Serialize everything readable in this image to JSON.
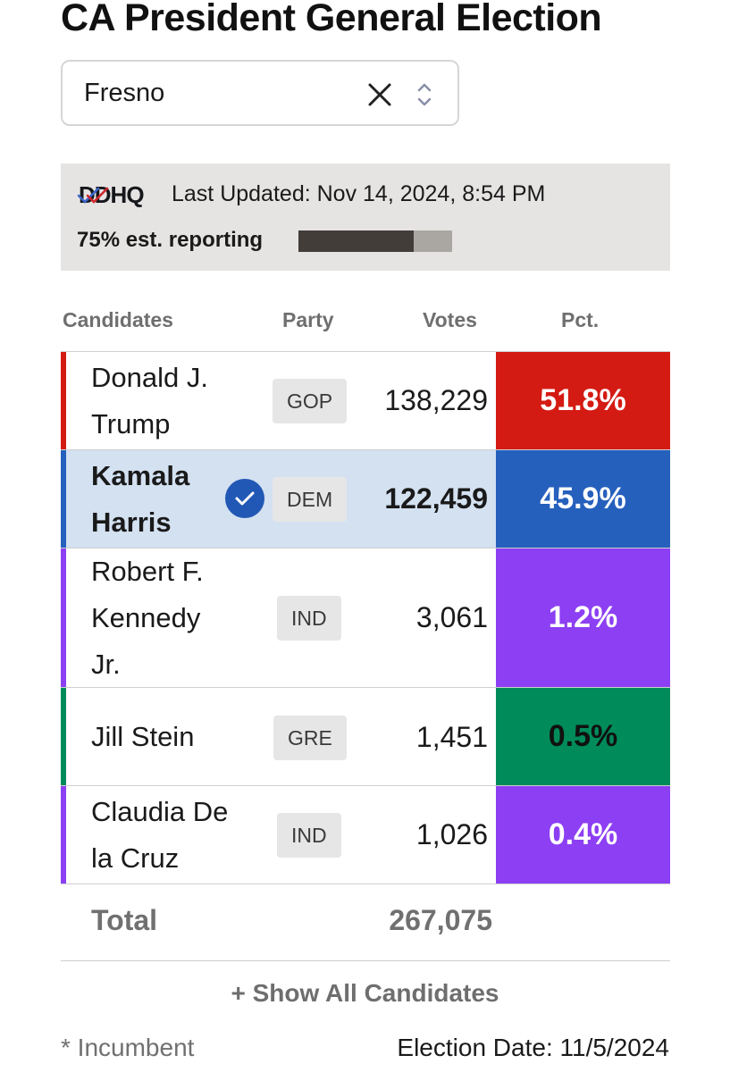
{
  "title": "CA President General Election",
  "county_select": {
    "value": "Fresno",
    "clear_icon": "close-icon",
    "stepper_icon": "chevron-up-down-icon"
  },
  "ddhq": {
    "logo": "DDHQ",
    "last_updated": "Last Updated: Nov 14, 2024, 8:54 PM",
    "reporting_label": "75% est. reporting",
    "reporting_fraction": 0.75
  },
  "table": {
    "headers": {
      "candidates": "Candidates",
      "party": "Party",
      "votes": "Votes",
      "pct": "Pct."
    },
    "rows": [
      {
        "name_line1": "Donald J.",
        "name_line2": "Trump",
        "name_line3": "",
        "party": "GOP",
        "votes": "138,229",
        "pct": "51.8%",
        "color": "#d41b13",
        "winner": false
      },
      {
        "name_line1": "Kamala",
        "name_line2": "Harris",
        "name_line3": "",
        "party": "DEM",
        "votes": "122,459",
        "pct": "45.9%",
        "color": "#2660bd",
        "winner": true,
        "row_bg": "#d3e1f1"
      },
      {
        "name_line1": "Robert F.",
        "name_line2": "Kennedy",
        "name_line3": "Jr.",
        "party": "IND",
        "votes": "3,061",
        "pct": "1.2%",
        "color": "#8c3ff3",
        "winner": false
      },
      {
        "name_line1": "Jill Stein",
        "name_line2": "",
        "name_line3": "",
        "party": "GRE",
        "votes": "1,451",
        "pct": "0.5%",
        "color": "#008b5b",
        "winner": false,
        "pct_text_color": "#111111"
      },
      {
        "name_line1": "Claudia De",
        "name_line2": "la Cruz",
        "name_line3": "",
        "party": "IND",
        "votes": "1,026",
        "pct": "0.4%",
        "color": "#8c3ff3",
        "winner": false
      }
    ],
    "total_label": "Total",
    "total_votes": "267,075"
  },
  "show_all": "+ Show All Candidates",
  "incumbent_note": "* Incumbent",
  "election_date": "Election Date: 11/5/2024"
}
